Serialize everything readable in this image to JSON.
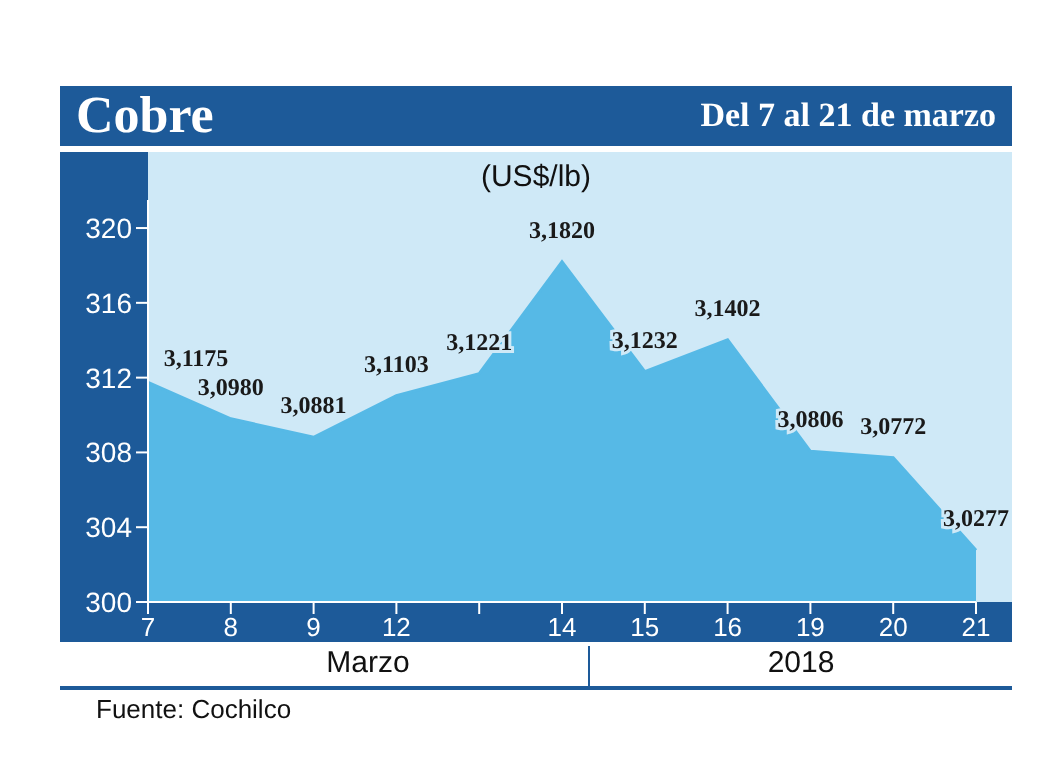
{
  "chart_data": {
    "type": "area",
    "title": "Cobre",
    "subtitle": "Del 7 al 21 de marzo",
    "ylabel": "(US$/lb)",
    "categories": [
      "7",
      "8",
      "9",
      "12",
      null,
      "14",
      "15",
      "16",
      "19",
      "20",
      "21"
    ],
    "values": [
      311.75,
      309.8,
      308.81,
      311.03,
      312.21,
      318.2,
      312.32,
      314.02,
      308.06,
      307.72,
      302.77
    ],
    "value_labels": [
      "3,1175",
      "3,0980",
      "3,0881",
      "3,1103",
      "3,1221",
      "3,1820",
      "3,1232",
      "3,1402",
      "3,0806",
      "3,0772",
      "3,0277"
    ],
    "color": "#56b9e6",
    "ylim": [
      300,
      321.5
    ],
    "yticks": [
      300,
      304,
      308,
      312,
      316,
      320
    ],
    "annotations": [
      "Marzo",
      "2018",
      "Fuente: Cochilco"
    ]
  }
}
